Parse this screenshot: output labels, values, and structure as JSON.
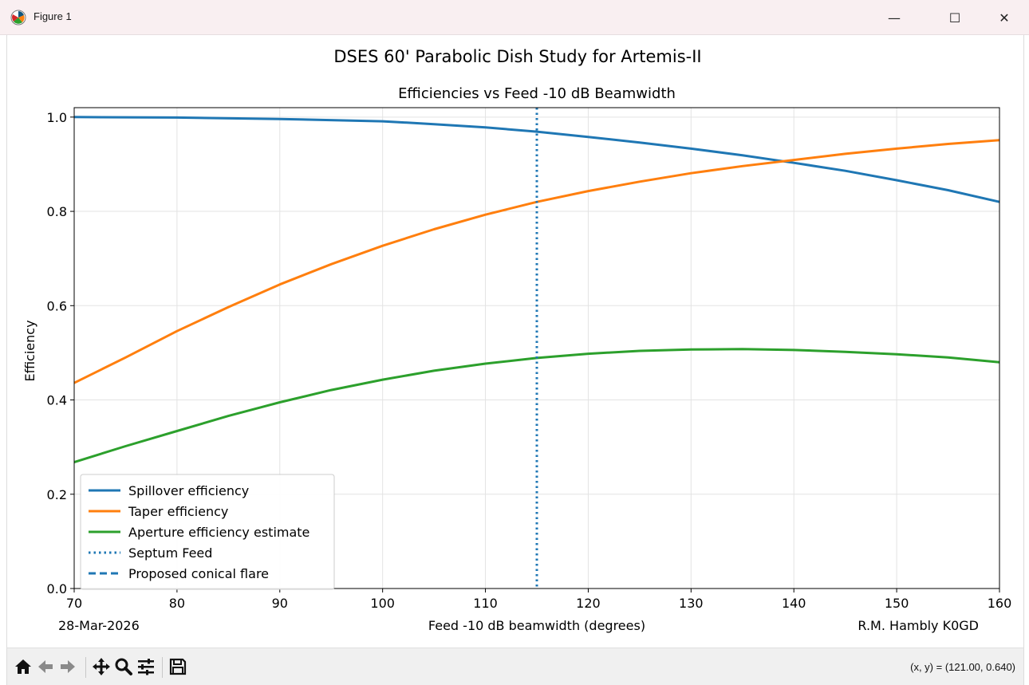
{
  "window": {
    "title": "Figure 1",
    "minimize_glyph": "—",
    "maximize_glyph": "☐",
    "close_glyph": "✕"
  },
  "toolbar": {
    "icons": [
      "home-icon",
      "back-icon",
      "forward-icon",
      "pan-icon",
      "zoom-icon",
      "configure-subplots-icon",
      "save-icon"
    ],
    "coords_text": "(x, y) = (121.00, 0.640)"
  },
  "chart_data": {
    "type": "line",
    "suptitle": "DSES 60' Parabolic Dish Study for Artemis-II",
    "title": "Efficiencies vs Feed -10 dB Beamwidth",
    "xlabel": "Feed -10 dB beamwidth (degrees)",
    "ylabel": "Efficiency",
    "footer_left": "28-Mar-2026",
    "footer_right": "R.M. Hambly K0GD",
    "xlim": [
      70,
      160
    ],
    "ylim": [
      0.0,
      1.02
    ],
    "xticks": [
      70,
      80,
      90,
      100,
      110,
      120,
      130,
      140,
      150,
      160
    ],
    "yticks": [
      0.0,
      0.2,
      0.4,
      0.6,
      0.8,
      1.0
    ],
    "ytick_labels": [
      "0.0",
      "0.2",
      "0.4",
      "0.6",
      "0.8",
      "1.0"
    ],
    "grid": true,
    "legend_position": "lower left",
    "series": [
      {
        "name": "Spillover efficiency",
        "color": "#1f77b4",
        "style": "solid",
        "x": [
          70,
          80,
          90,
          100,
          105,
          110,
          115,
          120,
          125,
          130,
          135,
          140,
          145,
          150,
          155,
          160
        ],
        "y": [
          1.0,
          0.999,
          0.996,
          0.991,
          0.985,
          0.978,
          0.969,
          0.958,
          0.946,
          0.933,
          0.919,
          0.903,
          0.886,
          0.866,
          0.845,
          0.82
        ]
      },
      {
        "name": "Taper efficiency",
        "color": "#ff7f0e",
        "style": "solid",
        "x": [
          70,
          75,
          80,
          85,
          90,
          95,
          100,
          105,
          110,
          115,
          120,
          125,
          130,
          135,
          140,
          145,
          150,
          155,
          160
        ],
        "y": [
          0.436,
          0.49,
          0.546,
          0.597,
          0.645,
          0.688,
          0.727,
          0.762,
          0.793,
          0.82,
          0.843,
          0.863,
          0.881,
          0.896,
          0.909,
          0.922,
          0.933,
          0.943,
          0.951
        ]
      },
      {
        "name": "Aperture efficiency estimate",
        "color": "#2ca02c",
        "style": "solid",
        "x": [
          70,
          75,
          80,
          85,
          90,
          95,
          100,
          105,
          110,
          115,
          120,
          125,
          130,
          135,
          140,
          145,
          150,
          155,
          160
        ],
        "y": [
          0.268,
          0.302,
          0.334,
          0.366,
          0.395,
          0.421,
          0.443,
          0.462,
          0.477,
          0.489,
          0.498,
          0.504,
          0.507,
          0.508,
          0.506,
          0.502,
          0.497,
          0.49,
          0.48
        ]
      },
      {
        "name": "Septum Feed",
        "color": "#1f77b4",
        "style": "dotted",
        "vline_x": 115
      },
      {
        "name": "Proposed conical flare",
        "color": "#1f77b4",
        "style": "dashed"
      }
    ]
  }
}
